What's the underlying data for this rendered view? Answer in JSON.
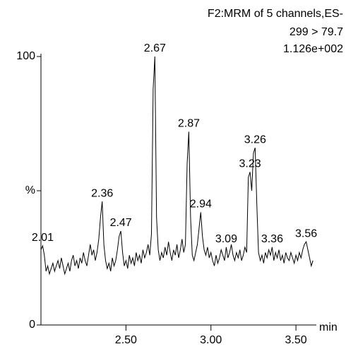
{
  "chart_data": {
    "type": "line",
    "title": "F2:MRM of 5 channels,ES-",
    "subtitle": "299 > 79.7",
    "intensity": "1.126e+002",
    "x_label": "min",
    "xlim": [
      2.0,
      3.62
    ],
    "ylim": [
      0,
      100
    ],
    "xticks": [
      {
        "value": 2.5,
        "label": "2.50"
      },
      {
        "value": 3.0,
        "label": "3.00"
      },
      {
        "value": 3.5,
        "label": "3.50"
      }
    ],
    "yticks": [
      0,
      {
        "value": 50,
        "label": "%"
      },
      100
    ],
    "grid": false,
    "series": [
      {
        "color": "#000000",
        "x": [
          2.0,
          2.01,
          2.02,
          2.03,
          2.04,
          2.05,
          2.06,
          2.07,
          2.08,
          2.09,
          2.1,
          2.11,
          2.12,
          2.13,
          2.14,
          2.15,
          2.16,
          2.17,
          2.18,
          2.19,
          2.2,
          2.21,
          2.22,
          2.23,
          2.24,
          2.25,
          2.26,
          2.27,
          2.28,
          2.29,
          2.3,
          2.31,
          2.32,
          2.33,
          2.34,
          2.35,
          2.36,
          2.37,
          2.38,
          2.39,
          2.4,
          2.41,
          2.42,
          2.43,
          2.44,
          2.45,
          2.46,
          2.47,
          2.48,
          2.49,
          2.5,
          2.51,
          2.52,
          2.53,
          2.54,
          2.55,
          2.56,
          2.57,
          2.58,
          2.59,
          2.6,
          2.61,
          2.62,
          2.63,
          2.64,
          2.65,
          2.66,
          2.67,
          2.68,
          2.69,
          2.7,
          2.71,
          2.72,
          2.73,
          2.74,
          2.75,
          2.76,
          2.77,
          2.78,
          2.79,
          2.8,
          2.81,
          2.82,
          2.83,
          2.84,
          2.85,
          2.86,
          2.87,
          2.88,
          2.89,
          2.9,
          2.91,
          2.92,
          2.93,
          2.94,
          2.95,
          2.96,
          2.97,
          2.98,
          2.99,
          3.0,
          3.01,
          3.02,
          3.03,
          3.04,
          3.05,
          3.06,
          3.07,
          3.08,
          3.09,
          3.1,
          3.11,
          3.12,
          3.13,
          3.14,
          3.15,
          3.16,
          3.17,
          3.18,
          3.19,
          3.2,
          3.21,
          3.22,
          3.23,
          3.24,
          3.25,
          3.26,
          3.27,
          3.28,
          3.29,
          3.3,
          3.31,
          3.32,
          3.33,
          3.34,
          3.35,
          3.36,
          3.37,
          3.38,
          3.39,
          3.4,
          3.41,
          3.42,
          3.43,
          3.44,
          3.45,
          3.46,
          3.47,
          3.48,
          3.49,
          3.5,
          3.51,
          3.52,
          3.53,
          3.54,
          3.55,
          3.56,
          3.57,
          3.58,
          3.59,
          3.6
        ],
        "values": [
          28,
          29.5,
          26,
          20,
          22,
          19,
          21,
          23,
          20,
          22,
          24,
          21,
          25,
          22,
          19,
          21,
          23,
          20,
          24,
          26,
          22,
          24,
          21,
          25,
          23,
          27,
          24,
          22,
          26,
          30,
          26,
          28,
          24,
          27,
          32,
          40,
          46,
          30,
          24,
          21,
          23,
          20,
          25,
          22,
          24,
          28,
          33,
          35,
          27,
          22,
          24,
          21,
          26,
          23,
          25,
          22,
          27,
          24,
          26,
          23,
          28,
          25,
          27,
          30,
          26,
          34,
          88,
          100,
          40,
          28,
          24,
          27,
          25,
          29,
          26,
          31,
          27,
          24,
          28,
          26,
          30,
          25,
          28,
          32,
          27,
          30,
          60,
          72,
          40,
          26,
          24,
          27,
          30,
          36,
          42,
          33,
          28,
          26,
          29,
          25,
          27,
          24,
          22,
          26,
          23,
          25,
          28,
          26,
          24,
          29,
          25,
          27,
          30,
          26,
          24,
          27,
          25,
          28,
          24,
          26,
          29,
          27,
          55,
          57,
          50,
          64,
          66,
          45,
          27,
          24,
          26,
          23,
          27,
          25,
          28,
          26,
          29,
          24,
          27,
          25,
          28,
          24,
          26,
          23,
          27,
          25,
          24,
          27,
          25,
          23,
          26,
          24,
          27,
          25,
          28,
          30,
          31,
          28,
          25,
          22,
          24
        ]
      }
    ],
    "annotations": [
      {
        "text": "2.01",
        "x": 2.01,
        "y": 29.5
      },
      {
        "text": "2.36",
        "x": 2.36,
        "y": 46
      },
      {
        "text": "2.47",
        "x": 2.47,
        "y": 35
      },
      {
        "text": "2.67",
        "x": 2.67,
        "y": 100
      },
      {
        "text": "2.87",
        "x": 2.87,
        "y": 72
      },
      {
        "text": "2.94",
        "x": 2.94,
        "y": 42
      },
      {
        "text": "3.09",
        "x": 3.09,
        "y": 29
      },
      {
        "text": "3.23",
        "x": 3.23,
        "y": 57
      },
      {
        "text": "3.26",
        "x": 3.26,
        "y": 66
      },
      {
        "text": "3.36",
        "x": 3.36,
        "y": 29
      },
      {
        "text": "3.56",
        "x": 3.56,
        "y": 31
      }
    ]
  }
}
